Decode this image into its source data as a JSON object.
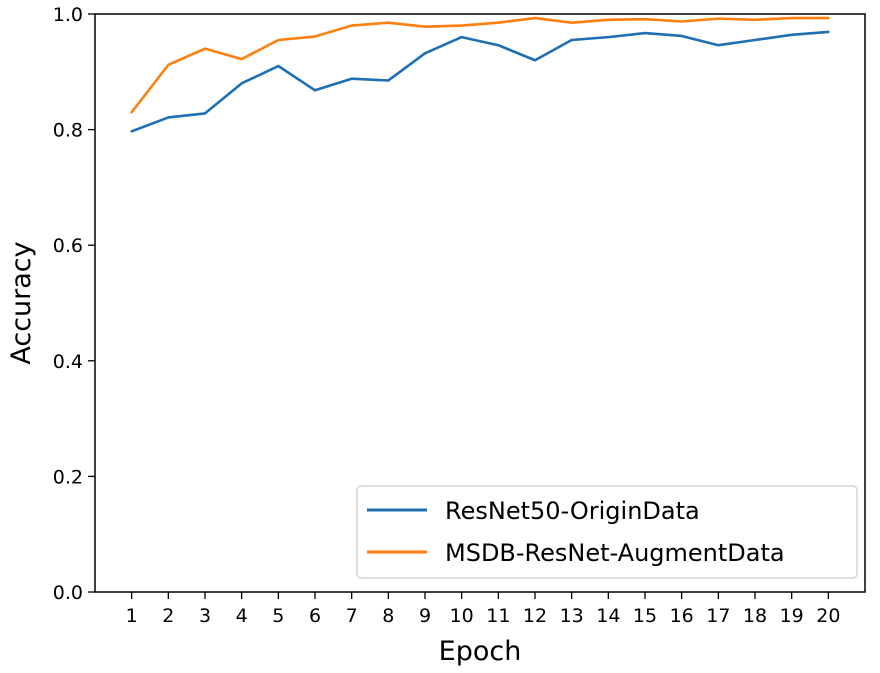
{
  "chart_data": {
    "type": "line",
    "title": "",
    "xlabel": "Epoch",
    "ylabel": "Accuracy",
    "x": [
      1,
      2,
      3,
      4,
      5,
      6,
      7,
      8,
      9,
      10,
      11,
      12,
      13,
      14,
      15,
      16,
      17,
      18,
      19,
      20
    ],
    "xlim": [
      0,
      21
    ],
    "ylim": [
      0.0,
      1.0
    ],
    "yticks": [
      "0.0",
      "0.2",
      "0.4",
      "0.6",
      "0.8",
      "1.0"
    ],
    "grid": false,
    "legend_position": "lower-right",
    "series": [
      {
        "name": "ResNet50-OriginData",
        "color": "#1f6fb4",
        "values": [
          0.797,
          0.821,
          0.828,
          0.88,
          0.91,
          0.868,
          0.888,
          0.885,
          0.932,
          0.96,
          0.946,
          0.92,
          0.955,
          0.96,
          0.967,
          0.962,
          0.946,
          0.955,
          0.964,
          0.969
        ]
      },
      {
        "name": "MSDB-ResNet-AugmentData",
        "color": "#ff7f0e",
        "values": [
          0.83,
          0.912,
          0.94,
          0.922,
          0.955,
          0.961,
          0.98,
          0.985,
          0.978,
          0.98,
          0.985,
          0.993,
          0.985,
          0.99,
          0.991,
          0.987,
          0.992,
          0.99,
          0.993,
          0.993
        ]
      }
    ]
  }
}
